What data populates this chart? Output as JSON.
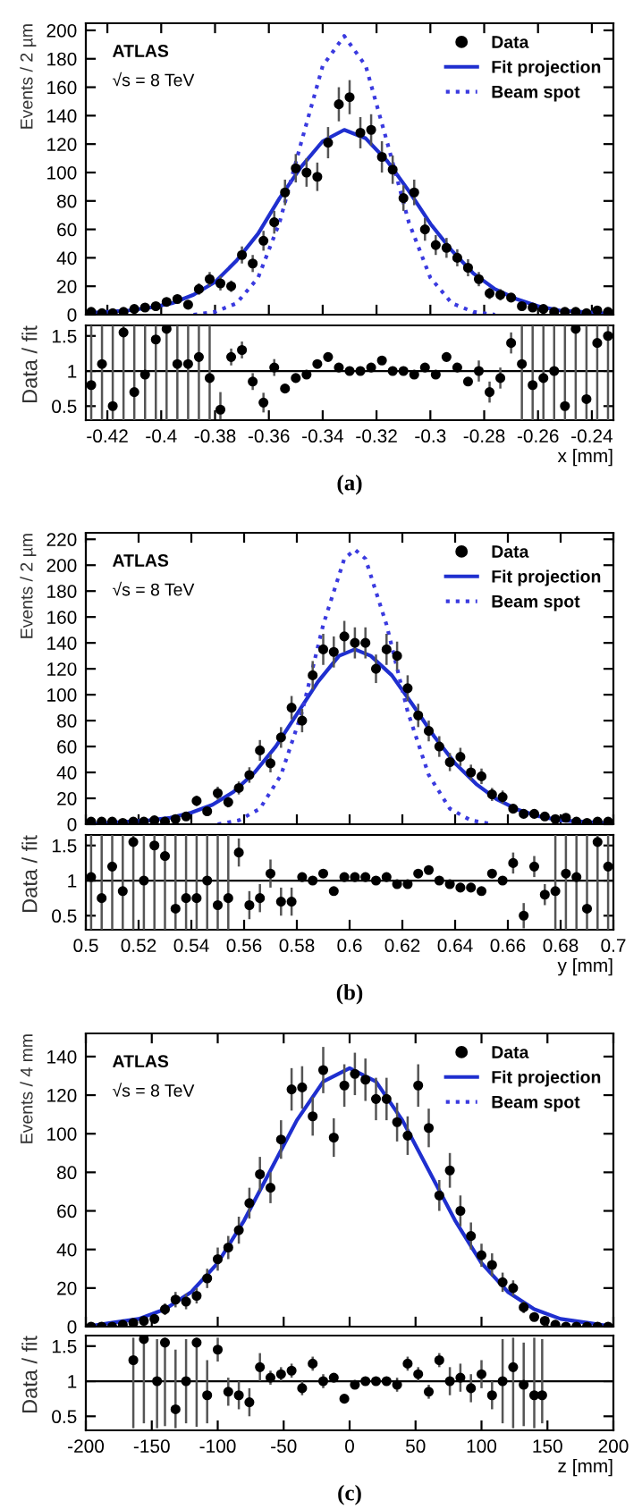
{
  "chart_data": [
    {
      "type": "scatter",
      "xlim": [
        -0.428,
        -0.232
      ],
      "xticks": [
        -0.42,
        -0.4,
        -0.38,
        -0.36,
        -0.34,
        -0.32,
        -0.3,
        -0.28,
        -0.26,
        -0.24
      ],
      "ylim": [
        0,
        205
      ],
      "yticks": [
        0,
        20,
        40,
        60,
        80,
        100,
        120,
        140,
        160,
        180,
        200
      ],
      "ylabel": "Events / 2 µm",
      "tick_labels": "y",
      "legend": "top right",
      "annotations": [
        "ATLAS",
        "√s = 8 TeV"
      ],
      "series": [
        {
          "name": "Data",
          "type": "scatter",
          "marker": "circle",
          "color": "#000000",
          "x": [
            -0.426,
            -0.422,
            -0.418,
            -0.414,
            -0.41,
            -0.406,
            -0.402,
            -0.398,
            -0.394,
            -0.39,
            -0.386,
            -0.382,
            -0.378,
            -0.374,
            -0.37,
            -0.366,
            -0.362,
            -0.358,
            -0.354,
            -0.35,
            -0.346,
            -0.342,
            -0.338,
            -0.334,
            -0.33,
            -0.326,
            -0.322,
            -0.318,
            -0.314,
            -0.31,
            -0.306,
            -0.302,
            -0.298,
            -0.294,
            -0.29,
            -0.286,
            -0.282,
            -0.278,
            -0.274,
            -0.27,
            -0.266,
            -0.262,
            -0.258,
            -0.254,
            -0.25,
            -0.246,
            -0.242,
            -0.238,
            -0.234
          ],
          "values": [
            2,
            1,
            1,
            2,
            4,
            5,
            6,
            9,
            11,
            7,
            18,
            25,
            22,
            20,
            42,
            36,
            52,
            65,
            86,
            103,
            100,
            97,
            121,
            148,
            153,
            128,
            130,
            111,
            102,
            82,
            86,
            60,
            49,
            47,
            40,
            33,
            25,
            15,
            14,
            12,
            6,
            5,
            4,
            2,
            2,
            2,
            1,
            3,
            2
          ],
          "errors": [
            1,
            1,
            1,
            1,
            2,
            2,
            2,
            3,
            3,
            3,
            4,
            5,
            5,
            4,
            6,
            6,
            7,
            8,
            9,
            10,
            10,
            10,
            11,
            12,
            12,
            11,
            11,
            11,
            10,
            9,
            9,
            8,
            7,
            7,
            6,
            6,
            5,
            4,
            4,
            3,
            2,
            2,
            2,
            1,
            1,
            1,
            1,
            2,
            1
          ]
        },
        {
          "name": "Fit projection",
          "type": "line",
          "line_style": "solid",
          "color": "#1f2fcf",
          "x": [
            -0.428,
            -0.42,
            -0.412,
            -0.404,
            -0.396,
            -0.388,
            -0.38,
            -0.372,
            -0.364,
            -0.356,
            -0.348,
            -0.34,
            -0.332,
            -0.324,
            -0.316,
            -0.308,
            -0.3,
            -0.292,
            -0.284,
            -0.276,
            -0.268,
            -0.26,
            -0.252,
            -0.244,
            -0.236
          ],
          "values": [
            1,
            2,
            3,
            5,
            8,
            14,
            23,
            38,
            57,
            82,
            104,
            122,
            130,
            124,
            108,
            87,
            64,
            45,
            29,
            18,
            11,
            6,
            3,
            2,
            1
          ]
        },
        {
          "name": "Beam spot",
          "type": "line",
          "line_style": "dotted",
          "color": "#3a3adf",
          "x": [
            -0.388,
            -0.38,
            -0.372,
            -0.364,
            -0.356,
            -0.348,
            -0.34,
            -0.332,
            -0.324,
            -0.316,
            -0.308,
            -0.3,
            -0.292,
            -0.284,
            -0.276
          ],
          "values": [
            0,
            2,
            8,
            26,
            65,
            121,
            175,
            196,
            175,
            121,
            65,
            26,
            8,
            2,
            0
          ]
        }
      ]
    },
    {
      "type": "scatter",
      "xlim": [
        -0.428,
        -0.232
      ],
      "xticks": [
        -0.42,
        -0.4,
        -0.38,
        -0.36,
        -0.34,
        -0.32,
        -0.3,
        -0.28,
        -0.26,
        -0.24
      ],
      "ylim": [
        0.3,
        1.65
      ],
      "yticks": [
        0.5,
        1,
        1.5
      ],
      "xlabel": "x [mm]",
      "ylabel": "Data / fit",
      "annotations": [
        "(a)"
      ],
      "ref_lines": [
        {
          "axis": "y",
          "value": 1,
          "color": "#000000"
        }
      ],
      "series": [
        {
          "type": "scatter",
          "marker": "circle",
          "color": "#000000",
          "x": [
            -0.426,
            -0.422,
            -0.418,
            -0.414,
            -0.41,
            -0.406,
            -0.402,
            -0.398,
            -0.394,
            -0.39,
            -0.386,
            -0.382,
            -0.378,
            -0.374,
            -0.37,
            -0.366,
            -0.362,
            -0.358,
            -0.354,
            -0.35,
            -0.346,
            -0.342,
            -0.338,
            -0.334,
            -0.33,
            -0.326,
            -0.322,
            -0.318,
            -0.314,
            -0.31,
            -0.306,
            -0.302,
            -0.298,
            -0.294,
            -0.29,
            -0.286,
            -0.282,
            -0.278,
            -0.274,
            -0.27,
            -0.266,
            -0.262,
            -0.258,
            -0.254,
            -0.25,
            -0.246,
            -0.242,
            -0.238,
            -0.234
          ],
          "values": [
            0.8,
            1.1,
            0.5,
            1.55,
            0.7,
            0.95,
            1.45,
            1.6,
            1.1,
            1.1,
            1.2,
            0.9,
            0.45,
            1.2,
            1.3,
            0.85,
            0.55,
            1.05,
            0.75,
            0.9,
            0.95,
            1.1,
            1.2,
            1.05,
            1.0,
            1.0,
            1.05,
            1.15,
            1.0,
            1.0,
            0.95,
            1.05,
            0.95,
            1.2,
            1.05,
            0.85,
            1.0,
            0.7,
            0.9,
            1.4,
            1.1,
            0.8,
            0.9,
            1.0,
            0.5,
            1.6,
            0.6,
            1.4,
            1.5
          ],
          "errors": [
            [
              0.3,
              1.65
            ],
            [
              0.3,
              1.65
            ],
            [
              0.3,
              1.65
            ],
            [
              0.3,
              1.65
            ],
            [
              0.3,
              1.65
            ],
            [
              0.3,
              1.65
            ],
            [
              0.3,
              1.65
            ],
            [
              0.3,
              1.65
            ],
            [
              0.3,
              1.65
            ],
            [
              0.3,
              1.65
            ],
            [
              0.3,
              1.65
            ],
            [
              0.3,
              1.65
            ],
            [
              0.31,
              0.7
            ],
            0.12,
            0.12,
            0.12,
            0.14,
            0.12,
            0.05,
            0.05,
            0.05,
            0.05,
            0.05,
            0.05,
            0.05,
            0.05,
            0.05,
            0.05,
            0.05,
            0.05,
            0.05,
            0.05,
            0.05,
            0.05,
            0.05,
            0.05,
            0.15,
            0.15,
            0.15,
            0.15,
            [
              0.3,
              1.65
            ],
            [
              0.3,
              1.65
            ],
            [
              0.3,
              1.65
            ],
            [
              0.3,
              1.65
            ],
            [
              0.3,
              1.65
            ],
            [
              0.3,
              1.65
            ],
            [
              0.3,
              1.65
            ],
            [
              0.3,
              1.65
            ],
            [
              0.3,
              1.65
            ]
          ]
        }
      ]
    },
    {
      "type": "scatter",
      "xlim": [
        0.5,
        0.7
      ],
      "xticks": [
        0.5,
        0.52,
        0.54,
        0.56,
        0.58,
        0.6,
        0.62,
        0.64,
        0.66,
        0.68,
        0.7
      ],
      "ylim": [
        0,
        225
      ],
      "yticks": [
        0,
        20,
        40,
        60,
        80,
        100,
        120,
        140,
        160,
        180,
        200,
        220
      ],
      "ylabel": "Events / 2 µm",
      "tick_labels": "y",
      "legend": "top right",
      "annotations": [
        "ATLAS",
        "√s = 8 TeV"
      ],
      "series": [
        {
          "name": "Data",
          "type": "scatter",
          "marker": "circle",
          "color": "#000000",
          "x": [
            0.502,
            0.506,
            0.51,
            0.514,
            0.518,
            0.522,
            0.526,
            0.53,
            0.534,
            0.538,
            0.542,
            0.546,
            0.55,
            0.554,
            0.558,
            0.562,
            0.566,
            0.57,
            0.574,
            0.578,
            0.582,
            0.586,
            0.59,
            0.594,
            0.598,
            0.602,
            0.606,
            0.61,
            0.614,
            0.618,
            0.622,
            0.626,
            0.63,
            0.634,
            0.638,
            0.642,
            0.646,
            0.65,
            0.654,
            0.658,
            0.662,
            0.666,
            0.67,
            0.674,
            0.678,
            0.682,
            0.686,
            0.69,
            0.694,
            0.698
          ],
          "values": [
            2,
            2,
            2,
            1,
            2,
            2,
            3,
            2,
            4,
            6,
            18,
            10,
            24,
            17,
            28,
            38,
            57,
            47,
            67,
            90,
            80,
            115,
            135,
            133,
            145,
            140,
            140,
            120,
            135,
            130,
            105,
            84,
            72,
            60,
            48,
            52,
            40,
            37,
            23,
            21,
            12,
            8,
            8,
            6,
            4,
            5,
            2,
            1,
            2,
            2
          ],
          "errors": [
            1,
            1,
            1,
            1,
            1,
            1,
            2,
            1,
            2,
            2,
            4,
            3,
            5,
            4,
            5,
            6,
            8,
            7,
            8,
            9,
            9,
            11,
            12,
            12,
            12,
            12,
            12,
            11,
            12,
            11,
            10,
            9,
            8,
            8,
            7,
            7,
            6,
            6,
            5,
            5,
            3,
            3,
            3,
            2,
            2,
            2,
            1,
            1,
            1,
            1
          ]
        },
        {
          "name": "Fit projection",
          "type": "line",
          "line_style": "solid",
          "color": "#1f2fcf",
          "x": [
            0.5,
            0.508,
            0.516,
            0.524,
            0.532,
            0.54,
            0.548,
            0.556,
            0.564,
            0.572,
            0.58,
            0.588,
            0.596,
            0.602,
            0.608,
            0.616,
            0.624,
            0.632,
            0.64,
            0.648,
            0.656,
            0.664,
            0.672,
            0.68,
            0.688,
            0.696,
            0.7
          ],
          "values": [
            0,
            1,
            2,
            3,
            5,
            9,
            15,
            25,
            40,
            60,
            85,
            110,
            130,
            135,
            130,
            115,
            92,
            68,
            47,
            31,
            19,
            11,
            6,
            3,
            2,
            1,
            0
          ]
        },
        {
          "name": "Beam spot",
          "type": "line",
          "line_style": "dotted",
          "color": "#3a3adf",
          "x": [
            0.55,
            0.558,
            0.566,
            0.574,
            0.582,
            0.59,
            0.598,
            0.602,
            0.606,
            0.614,
            0.622,
            0.63,
            0.638,
            0.646,
            0.654
          ],
          "values": [
            0,
            3,
            12,
            38,
            87,
            154,
            205,
            212,
            205,
            154,
            87,
            38,
            12,
            3,
            0
          ]
        }
      ]
    },
    {
      "type": "scatter",
      "xlim": [
        0.5,
        0.7
      ],
      "xticks": [
        0.5,
        0.52,
        0.54,
        0.56,
        0.58,
        0.6,
        0.62,
        0.64,
        0.66,
        0.68,
        0.7
      ],
      "ylim": [
        0.3,
        1.65
      ],
      "yticks": [
        0.5,
        1,
        1.5
      ],
      "xlabel": "y [mm]",
      "ylabel": "Data / fit",
      "annotations": [
        "(b)"
      ],
      "ref_lines": [
        {
          "axis": "y",
          "value": 1,
          "color": "#000000"
        }
      ],
      "series": [
        {
          "type": "scatter",
          "marker": "circle",
          "color": "#000000",
          "x": [
            0.502,
            0.506,
            0.51,
            0.514,
            0.518,
            0.522,
            0.526,
            0.53,
            0.534,
            0.538,
            0.542,
            0.546,
            0.55,
            0.554,
            0.558,
            0.562,
            0.566,
            0.57,
            0.574,
            0.578,
            0.582,
            0.586,
            0.59,
            0.594,
            0.598,
            0.602,
            0.606,
            0.61,
            0.614,
            0.618,
            0.622,
            0.626,
            0.63,
            0.634,
            0.638,
            0.642,
            0.646,
            0.65,
            0.654,
            0.658,
            0.662,
            0.666,
            0.67,
            0.674,
            0.678,
            0.682,
            0.686,
            0.69,
            0.694,
            0.698
          ],
          "values": [
            1.05,
            0.75,
            1.2,
            0.85,
            1.55,
            1.0,
            1.5,
            1.35,
            0.6,
            0.75,
            0.75,
            1.0,
            0.65,
            0.75,
            1.4,
            0.65,
            0.75,
            1.1,
            0.7,
            0.7,
            1.05,
            1.0,
            1.1,
            0.85,
            1.05,
            1.05,
            1.05,
            1.0,
            1.05,
            0.95,
            0.95,
            1.1,
            1.15,
            1.0,
            0.95,
            0.9,
            0.9,
            0.85,
            1.1,
            1.0,
            1.25,
            0.5,
            1.2,
            0.8,
            0.85,
            1.1,
            1.05,
            0.6,
            1.55,
            1.2
          ],
          "errors": [
            [
              0.3,
              1.65
            ],
            [
              0.3,
              1.65
            ],
            [
              0.3,
              1.65
            ],
            [
              0.3,
              1.65
            ],
            [
              0.3,
              1.65
            ],
            [
              0.3,
              1.65
            ],
            [
              0.3,
              1.65
            ],
            [
              0.3,
              1.65
            ],
            [
              0.3,
              1.65
            ],
            [
              0.3,
              1.65
            ],
            [
              0.3,
              1.65
            ],
            [
              0.3,
              1.65
            ],
            [
              0.3,
              1.65
            ],
            [
              0.3,
              1.65
            ],
            0.2,
            0.2,
            0.2,
            0.2,
            0.2,
            0.2,
            0.06,
            0.06,
            0.06,
            0.06,
            0.06,
            0.06,
            0.06,
            0.06,
            0.06,
            0.06,
            0.06,
            0.06,
            0.06,
            0.06,
            0.06,
            0.06,
            0.06,
            0.06,
            0.06,
            0.06,
            0.15,
            0.18,
            0.15,
            0.15,
            [
              0.3,
              1.65
            ],
            [
              0.3,
              1.65
            ],
            [
              0.3,
              1.65
            ],
            [
              0.3,
              1.65
            ],
            [
              0.3,
              1.65
            ],
            [
              0.3,
              1.65
            ]
          ]
        }
      ]
    },
    {
      "type": "scatter",
      "xlim": [
        -200,
        200
      ],
      "xticks": [
        -200,
        -150,
        -100,
        -50,
        0,
        50,
        100,
        150,
        200
      ],
      "ylim": [
        0,
        152
      ],
      "yticks": [
        0,
        20,
        40,
        60,
        80,
        100,
        120,
        140
      ],
      "ylabel": "Events / 4 mm",
      "tick_labels": "y",
      "legend": "top right",
      "annotations": [
        "ATLAS",
        "√s = 8 TeV"
      ],
      "series": [
        {
          "name": "Data",
          "type": "scatter",
          "marker": "circle",
          "color": "#000000",
          "x": [
            -196,
            -188,
            -180,
            -172,
            -164,
            -156,
            -148,
            -140,
            -132,
            -124,
            -116,
            -108,
            -100,
            -92,
            -84,
            -76,
            -68,
            -60,
            -52,
            -44,
            -36,
            -28,
            -20,
            -12,
            -4,
            4,
            12,
            20,
            28,
            36,
            44,
            52,
            60,
            68,
            76,
            84,
            92,
            100,
            108,
            116,
            124,
            132,
            140,
            148,
            156,
            164,
            172,
            180,
            188,
            196
          ],
          "values": [
            0,
            0,
            0,
            1,
            2,
            3,
            4,
            9,
            14,
            13,
            16,
            25,
            35,
            41,
            50,
            64,
            79,
            72,
            97,
            123,
            124,
            109,
            133,
            98,
            125,
            131,
            128,
            118,
            118,
            106,
            99,
            125,
            103,
            68,
            81,
            60,
            47,
            37,
            32,
            23,
            20,
            10,
            5,
            3,
            1,
            0,
            0,
            0,
            0,
            0
          ],
          "errors": [
            0,
            0,
            0,
            1,
            1,
            2,
            2,
            3,
            4,
            4,
            4,
            5,
            6,
            6,
            7,
            8,
            9,
            8,
            10,
            11,
            11,
            10,
            12,
            10,
            11,
            11,
            11,
            11,
            11,
            10,
            10,
            11,
            10,
            8,
            9,
            8,
            7,
            6,
            6,
            5,
            4,
            3,
            2,
            2,
            1,
            0,
            0,
            0,
            0,
            0
          ]
        },
        {
          "name": "Fit projection",
          "type": "line",
          "line_style": "solid",
          "color": "#1f2fcf",
          "x": [
            -200,
            -180,
            -160,
            -140,
            -120,
            -100,
            -80,
            -60,
            -40,
            -20,
            0,
            20,
            40,
            60,
            80,
            100,
            120,
            140,
            160,
            180,
            200
          ],
          "values": [
            0,
            2,
            4,
            9,
            18,
            33,
            55,
            81,
            107,
            127,
            134,
            127,
            107,
            81,
            55,
            33,
            18,
            9,
            4,
            2,
            0
          ]
        },
        {
          "name": "Beam spot",
          "type": "line",
          "line_style": "dotted",
          "color": "#3a3adf"
        }
      ]
    },
    {
      "type": "scatter",
      "xlim": [
        -200,
        200
      ],
      "xticks": [
        -200,
        -150,
        -100,
        -50,
        0,
        50,
        100,
        150,
        200
      ],
      "ylim": [
        0.3,
        1.65
      ],
      "yticks": [
        0.5,
        1,
        1.5
      ],
      "xlabel": "z [mm]",
      "ylabel": "Data / fit",
      "annotations": [
        "(c)"
      ],
      "ref_lines": [
        {
          "axis": "y",
          "value": 1,
          "color": "#000000"
        }
      ],
      "series": [
        {
          "marker": "circle",
          "color": "#000000",
          "x": [
            -164,
            -156,
            -146,
            -140,
            -132,
            -124,
            -116,
            -108,
            -100,
            -92,
            -84,
            -76,
            -68,
            -60,
            -52,
            -44,
            -36,
            -28,
            -20,
            -12,
            -4,
            4,
            12,
            20,
            28,
            36,
            44,
            52,
            60,
            68,
            76,
            84,
            92,
            100,
            108,
            116,
            124,
            132,
            140,
            146
          ],
          "values": [
            1.3,
            1.6,
            1.0,
            1.55,
            0.6,
            1.0,
            1.55,
            0.8,
            1.45,
            0.85,
            0.8,
            0.7,
            1.2,
            1.05,
            1.1,
            1.15,
            0.9,
            1.25,
            1.0,
            1.05,
            0.75,
            0.95,
            1.0,
            1.0,
            1.0,
            0.95,
            1.25,
            1.1,
            0.85,
            1.3,
            1.0,
            1.05,
            0.9,
            1.1,
            0.8,
            1.0,
            1.2,
            0.95,
            0.8,
            0.8
          ],
          "errors": [
            [
              0.33,
              1.62
            ],
            [
              0.4,
              1.62
            ],
            [
              0.33,
              1.6
            ],
            [
              0.36,
              1.62
            ],
            [
              0.33,
              1.45
            ],
            [
              0.4,
              1.6
            ],
            [
              0.35,
              1.62
            ],
            [
              0.4,
              1.3
            ],
            0.17,
            0.2,
            0.2,
            0.2,
            0.2,
            0.1,
            0.1,
            0.1,
            0.1,
            0.1,
            0.1,
            0.05,
            0.05,
            0.05,
            0.05,
            0.05,
            0.05,
            0.1,
            0.1,
            0.1,
            0.1,
            0.1,
            0.2,
            0.2,
            0.2,
            0.2,
            0.2,
            [
              0.4,
              1.6
            ],
            [
              0.33,
              1.62
            ],
            [
              0.36,
              1.55
            ],
            [
              0.33,
              1.62
            ],
            [
              0.4,
              1.6
            ]
          ]
        }
      ]
    }
  ]
}
